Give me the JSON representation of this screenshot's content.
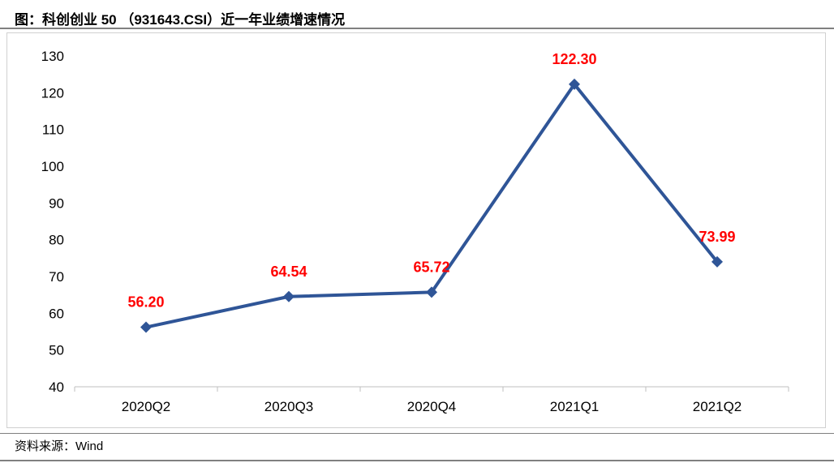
{
  "title": "图：科创创业 50 （931643.CSI）近一年业绩增速情况",
  "source": "资料来源：Wind",
  "chart_data": {
    "type": "line",
    "title": "",
    "xlabel": "",
    "ylabel": "",
    "categories": [
      "2020Q2",
      "2020Q3",
      "2020Q4",
      "2021Q1",
      "2021Q2"
    ],
    "series": [
      {
        "values": [
          56.2,
          64.54,
          65.72,
          122.3,
          73.99
        ],
        "data_labels": [
          "56.20",
          "64.54",
          "65.72",
          "122.30",
          "73.99"
        ],
        "color": "#2F5597",
        "marker": "diamond"
      }
    ],
    "ylim": [
      40,
      130
    ],
    "yticks": [
      "40",
      "50",
      "60",
      "70",
      "80",
      "90",
      "100",
      "110",
      "120",
      "130"
    ],
    "label_color": "#FF0000",
    "grid": false,
    "legend": "none"
  }
}
